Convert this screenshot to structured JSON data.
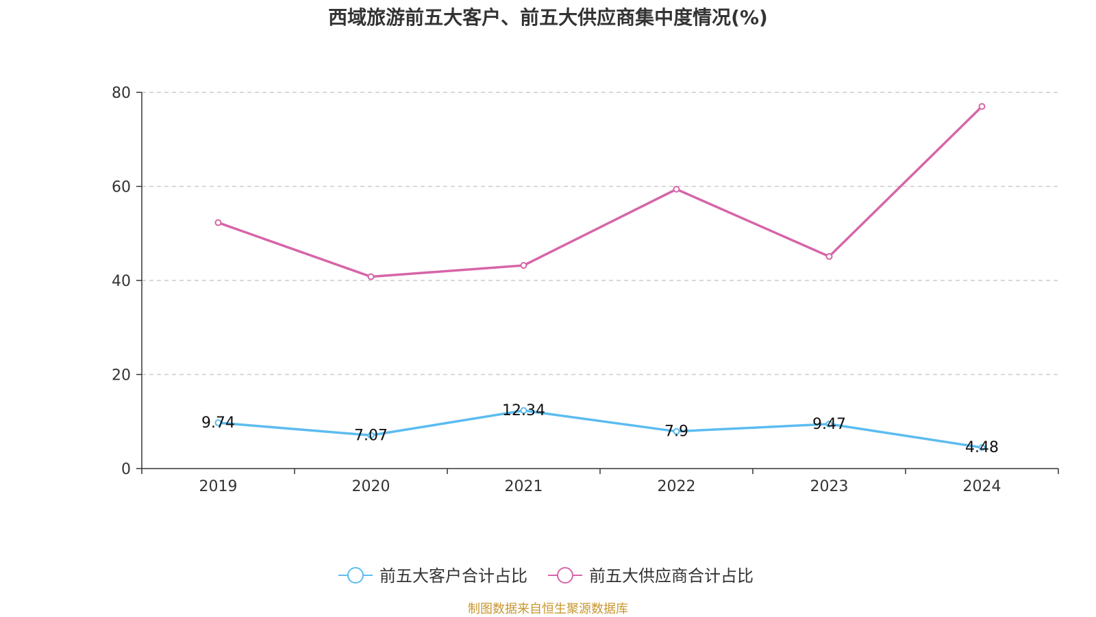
{
  "chart_data": {
    "type": "line",
    "title": "西域旅游前五大客户、前五大供应商集中度情况(%)",
    "categories": [
      "2019",
      "2020",
      "2021",
      "2022",
      "2023",
      "2024"
    ],
    "series": [
      {
        "name": "前五大客户合计占比",
        "color": "#5bbcf0",
        "values": [
          9.74,
          7.07,
          12.34,
          7.9,
          9.47,
          4.48
        ],
        "labels": [
          "9.74",
          "7.07",
          "12.34",
          "7.9",
          "9.47",
          "4.48"
        ],
        "show_labels": true
      },
      {
        "name": "前五大供应商合计占比",
        "color": "#d764a8",
        "values": [
          52.3,
          40.8,
          43.2,
          59.4,
          45.1,
          77.0
        ],
        "labels": [
          "52.3",
          "40.8",
          "43.2",
          "59.4",
          "45.1",
          "77.0"
        ],
        "show_labels": false
      }
    ],
    "ylim": [
      0,
      80
    ],
    "yticks": [
      "0",
      "20",
      "40",
      "60",
      "80"
    ],
    "grid": true,
    "legend_position": "bottom-center",
    "xlabel": "",
    "ylabel": ""
  },
  "footer": {
    "source": "制图数据来自恒生聚源数据库"
  }
}
